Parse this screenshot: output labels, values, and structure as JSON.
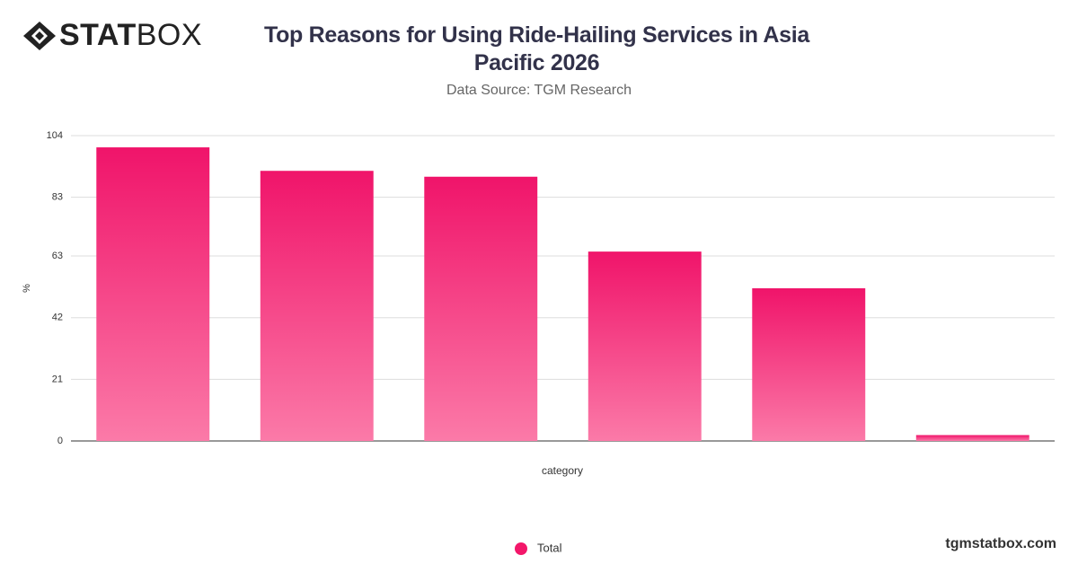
{
  "logo": {
    "bold": "STAT",
    "light": "BOX"
  },
  "footer": "tgmstatbox.com",
  "chart_data": {
    "type": "bar",
    "title": "Top Reasons for Using Ride-Hailing Services in Asia Pacific 2026",
    "subtitle": "Data Source: TGM Research",
    "xlabel": "category",
    "ylabel": "%",
    "categories": [
      null,
      null,
      null,
      null,
      null,
      null
    ],
    "series": [
      {
        "name": "Total",
        "color": "#f3176a",
        "values": [
          100,
          92,
          90,
          64.5,
          52,
          2
        ]
      }
    ],
    "ylim": [
      0,
      104
    ],
    "yticks": [
      0,
      21,
      42,
      63,
      83,
      104
    ],
    "grid": true,
    "legend": "bottom"
  }
}
